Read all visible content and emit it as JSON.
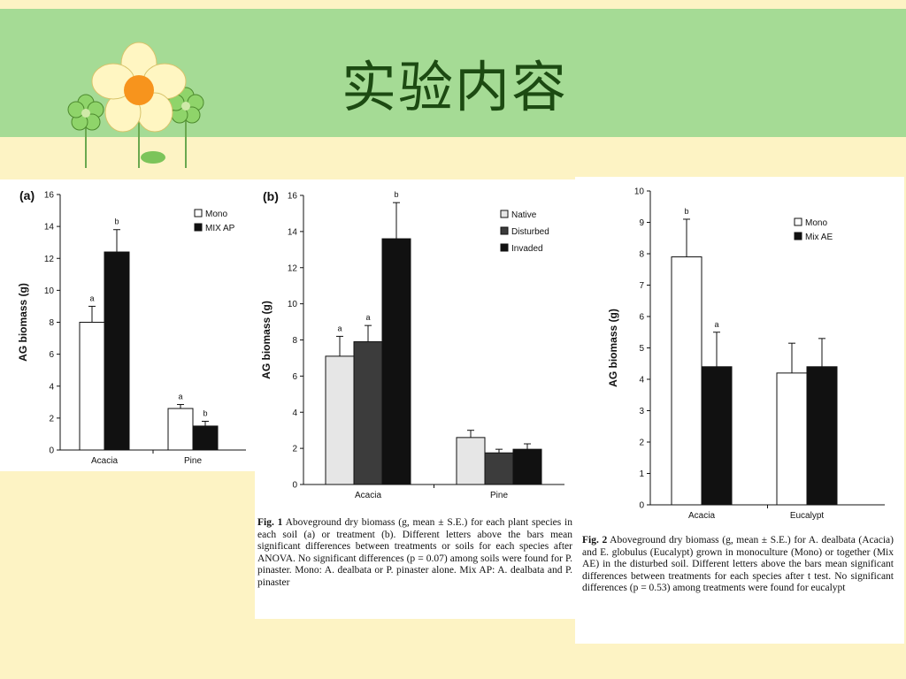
{
  "slide": {
    "title": "实验内容"
  },
  "colors": {
    "band": "#a5db95",
    "background": "#fdf3c4",
    "title": "#1c4a12"
  },
  "chart_data": [
    {
      "type": "bar",
      "panel_label": "(a)",
      "ylabel": "AG biomass (g)",
      "ylim": [
        0,
        16
      ],
      "yticks": [
        0,
        2,
        4,
        6,
        8,
        10,
        12,
        14,
        16
      ],
      "categories": [
        "Acacia",
        "Pine"
      ],
      "series": [
        {
          "name": "Mono",
          "values": [
            8.0,
            2.6
          ],
          "errors": [
            1.0,
            0.25
          ],
          "letters": [
            "a",
            "a"
          ],
          "color": "#ffffff"
        },
        {
          "name": "MIX AP",
          "values": [
            12.4,
            1.5
          ],
          "errors": [
            1.4,
            0.3
          ],
          "letters": [
            "b",
            "b"
          ],
          "color": "#111111"
        }
      ],
      "legend": "top-right"
    },
    {
      "type": "bar",
      "panel_label": "(b)",
      "ylabel": "AG biomass (g)",
      "ylim": [
        0,
        16
      ],
      "yticks": [
        0,
        2,
        4,
        6,
        8,
        10,
        12,
        14,
        16
      ],
      "categories": [
        "Acacia",
        "Pine"
      ],
      "series": [
        {
          "name": "Native",
          "values": [
            7.1,
            2.6
          ],
          "errors": [
            1.1,
            0.4
          ],
          "letters": [
            "a",
            ""
          ],
          "color": "#e6e6e6"
        },
        {
          "name": "Disturbed",
          "values": [
            7.9,
            1.75
          ],
          "errors": [
            0.9,
            0.2
          ],
          "letters": [
            "a",
            ""
          ],
          "color": "#3c3c3c"
        },
        {
          "name": "Invaded",
          "values": [
            13.6,
            1.95
          ],
          "errors": [
            2.0,
            0.3
          ],
          "letters": [
            "b",
            ""
          ],
          "color": "#111111"
        }
      ],
      "legend": "top-right"
    },
    {
      "type": "bar",
      "panel_label": "",
      "ylabel": "AG biomass (g)",
      "ylim": [
        0,
        10
      ],
      "yticks": [
        0,
        1,
        2,
        3,
        4,
        5,
        6,
        7,
        8,
        9,
        10
      ],
      "categories": [
        "Acacia",
        "Eucalypt"
      ],
      "series": [
        {
          "name": "Mono",
          "values": [
            7.9,
            4.2
          ],
          "errors": [
            1.2,
            0.95
          ],
          "letters": [
            "b",
            ""
          ],
          "color": "#ffffff"
        },
        {
          "name": "Mix AE",
          "values": [
            4.4,
            4.4
          ],
          "errors": [
            1.1,
            0.9
          ],
          "letters": [
            "a",
            ""
          ],
          "color": "#111111"
        }
      ],
      "legend": "top-right"
    }
  ],
  "captions": {
    "b": {
      "fig": "Fig. 1",
      "text": "Aboveground dry biomass (g, mean ± S.E.) for each plant species in each soil (a) or treatment (b). Different letters above the bars mean significant differences between treatments or soils for each species after ANOVA. No significant differences (p = 0.07) among soils were found for P. pinaster. Mono: A. dealbata or P. pinaster alone. Mix AP: A. dealbata and P. pinaster"
    },
    "c": {
      "fig": "Fig. 2",
      "text": "Aboveground dry biomass (g, mean ± S.E.) for A. dealbata (Acacia) and E. globulus (Eucalypt) grown in monoculture (Mono) or together (Mix AE) in the disturbed soil. Different letters above the bars mean significant differences between treatments for each species after t test. No significant differences (p = 0.53) among treatments were found for eucalypt"
    }
  }
}
